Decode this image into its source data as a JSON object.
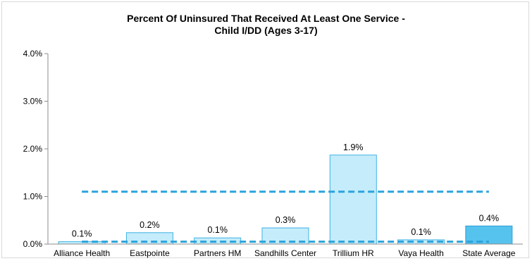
{
  "chart_data": {
    "type": "bar",
    "title_line1": "Percent Of Uninsured That Received At Least One Service -",
    "title_line2": "Child I/DD (Ages 3-17)",
    "categories": [
      "Alliance Health",
      "Eastpointe",
      "Partners HM",
      "Sandhills Center",
      "Trillium HR",
      "Vaya Health",
      "State Average"
    ],
    "values": [
      0.05,
      0.24,
      0.13,
      0.34,
      1.87,
      0.09,
      0.38
    ],
    "labels": [
      "0.1%",
      "0.2%",
      "0.1%",
      "0.3%",
      "1.9%",
      "0.1%",
      "0.4%"
    ],
    "yticks": [
      "0.0%",
      "1.0%",
      "2.0%",
      "3.0%",
      "4.0%"
    ],
    "ylim": [
      0,
      4
    ],
    "reference_lines": [
      1.1,
      0.05
    ],
    "colors": {
      "bar_fill": "#c5ecfb",
      "bar_stroke": "#3fb3e3",
      "state_fill": "#56c3ee",
      "state_stroke": "#2a9fd6",
      "ref_line": "#2aa3dc",
      "axis": "#8c8c8c"
    }
  }
}
